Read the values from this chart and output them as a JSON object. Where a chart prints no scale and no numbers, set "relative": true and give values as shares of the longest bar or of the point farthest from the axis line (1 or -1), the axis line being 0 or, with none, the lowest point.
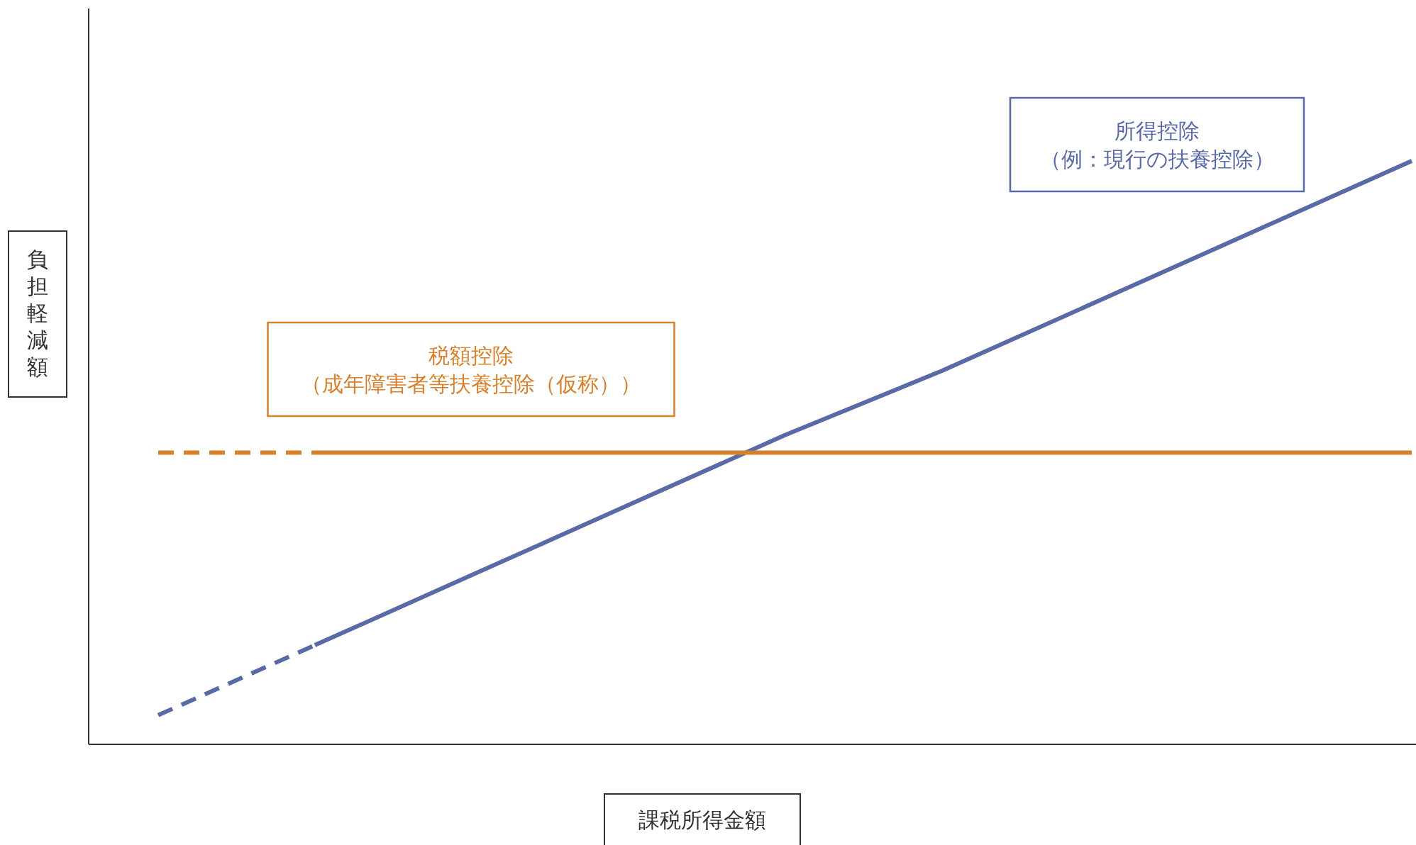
{
  "chart_data": {
    "type": "line",
    "relative": true,
    "xlabel": "課税所得金額",
    "ylabel": "負担軽減額",
    "categories": [
      null,
      null,
      null,
      null,
      null,
      null,
      null,
      null,
      null
    ],
    "grid": false,
    "marker": "none",
    "series": [
      {
        "color": "#5a6aa6",
        "line_style": "dashed",
        "values": [
          0.05,
          0.17,
          null,
          null,
          null,
          null,
          null,
          null,
          null
        ]
      },
      {
        "name": "所得控除（例：現行の扶養控除）",
        "color": "#5a6aa6",
        "line_style": "solid",
        "values": [
          null,
          0.17,
          0.29,
          0.41,
          0.53,
          0.64,
          0.76,
          0.88,
          1
        ]
      },
      {
        "color": "#d6802e",
        "line_style": "dashed",
        "values": [
          0.5,
          0.5,
          null,
          null,
          null,
          null,
          null,
          null,
          null
        ]
      },
      {
        "name": "税額控除（成年障害者等扶養控除（仮称））",
        "color": "#d6802e",
        "line_style": "solid",
        "values": [
          null,
          0.5,
          0.5,
          0.5,
          0.5,
          0.5,
          0.5,
          0.5,
          0.5
        ]
      }
    ]
  }
}
